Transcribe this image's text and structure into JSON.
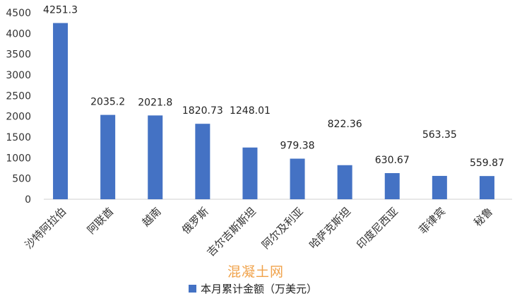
{
  "chart_data": {
    "type": "bar",
    "categories": [
      "沙特阿拉伯",
      "阿联酋",
      "越南",
      "俄罗斯",
      "吉尔吉斯斯坦",
      "阿尔及利亚",
      "哈萨克斯坦",
      "印度尼西亚",
      "菲律宾",
      "秘鲁"
    ],
    "series": [
      {
        "name": "本月累计金额（万美元）",
        "values": [
          4251.3,
          2035.2,
          2021.8,
          1820.73,
          1248.01,
          979.38,
          822.36,
          630.67,
          563.35,
          559.87
        ],
        "labels": [
          "4251.3",
          "2035.2",
          "2021.8",
          "1820.73",
          "1248.01",
          "979.38",
          "822.36",
          "630.67",
          "563.35",
          "559.87"
        ],
        "color": "#4472C4"
      }
    ],
    "yticks": [
      "0",
      "500",
      "1000",
      "1500",
      "2000",
      "2500",
      "3000",
      "3500",
      "4000",
      "4500"
    ],
    "ylim": [
      0,
      4500
    ],
    "grid": false,
    "legend_position": "bottom"
  },
  "watermark": "混凝土网",
  "legend": {
    "label": "本月累计金额（万美元）",
    "color": "#4472C4"
  }
}
